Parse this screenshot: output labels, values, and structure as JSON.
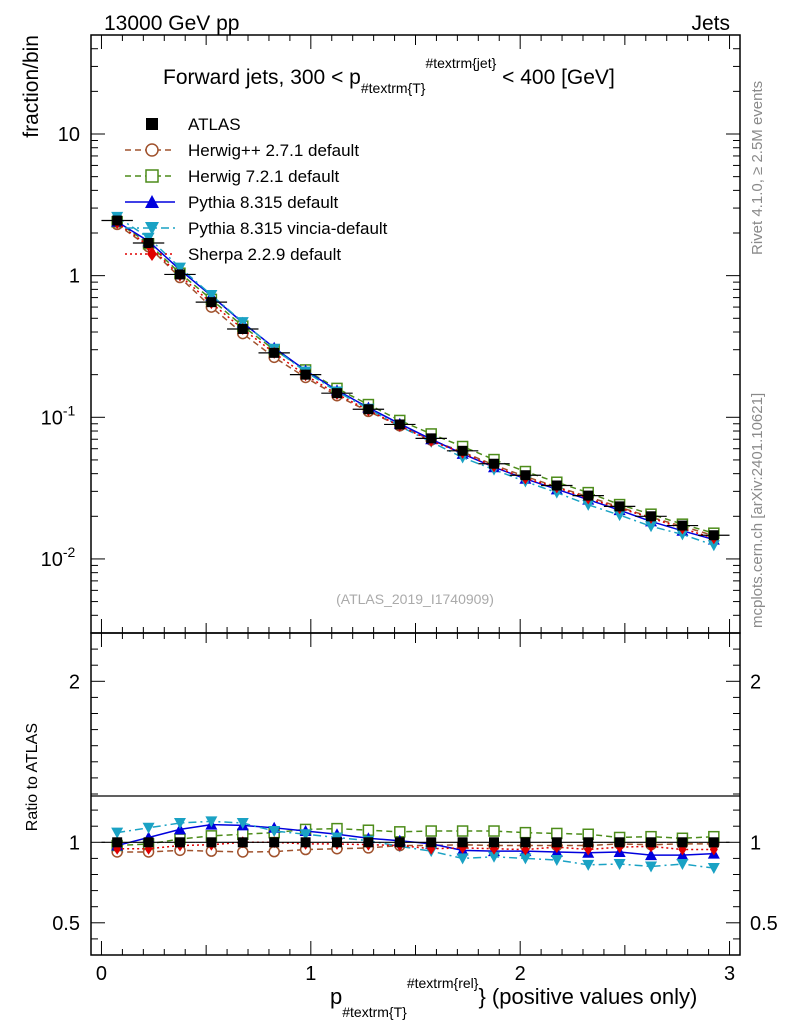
{
  "header": {
    "energy": "13000 GeV pp",
    "category": "Jets"
  },
  "side_labels": {
    "rivet": "Rivet 4.1.0, ≥ 2.5M events",
    "mcplots": "mcplots.cern.ch [arXiv:2401.10621]"
  },
  "watermark": "(ATLAS_2019_I1740909)",
  "chart_data": {
    "type": "line",
    "title": "Forward jets, 300 < p_{#textrm{T}}^{#textrm{jet}} < 400 [GeV]",
    "title_parts": {
      "prefix": "Forward jets, 300 < p",
      "sub": "#textrm{T}",
      "sup": "#textrm{jet}",
      "suffix": " < 400 [GeV]"
    },
    "xlabel_parts": {
      "base": "p",
      "sub": "#textrm{T}",
      "sup": "#textrm{rel}",
      "suffix": "} (positive values only)"
    },
    "ylabel_top": "fraction/bin",
    "ylabel_bottom": "Ratio to ATLAS",
    "xlim": [
      -0.05,
      3.05
    ],
    "ylim_top": [
      0.003,
      50
    ],
    "ylim_bottom": [
      0.3,
      2.3
    ],
    "x_ticks": [
      "0",
      "1",
      "2",
      "3"
    ],
    "y_ticks_top": [
      "10^{-2}",
      "10^{-1}",
      "1",
      "10"
    ],
    "y_ticks_bottom": [
      "0.5",
      "1",
      "2"
    ],
    "legend_position": "top-left",
    "x": [
      0.075,
      0.225,
      0.375,
      0.525,
      0.675,
      0.825,
      0.975,
      1.125,
      1.275,
      1.425,
      1.575,
      1.725,
      1.875,
      2.025,
      2.175,
      2.325,
      2.475,
      2.625,
      2.775,
      2.925
    ],
    "series": [
      {
        "name": "ATLAS",
        "color": "#000000",
        "marker": "square-filled",
        "line": "none",
        "values": [
          2.45,
          1.7,
          1.02,
          0.65,
          0.42,
          0.285,
          0.2,
          0.148,
          0.114,
          0.089,
          0.071,
          0.058,
          0.047,
          0.039,
          0.033,
          0.028,
          0.0235,
          0.02,
          0.0172,
          0.0147
        ],
        "ratio": [
          1,
          1,
          1,
          1,
          1,
          1,
          1,
          1,
          1,
          1,
          1,
          1,
          1,
          1,
          1,
          1,
          1,
          1,
          1,
          1
        ]
      },
      {
        "name": "Herwig++ 2.7.1 default",
        "color": "#a0522d",
        "marker": "circle-open",
        "line": "dashed",
        "values": [
          2.3,
          1.6,
          0.97,
          0.6,
          0.39,
          0.265,
          0.191,
          0.142,
          0.11,
          0.087,
          0.069,
          0.057,
          0.046,
          0.0382,
          0.0323,
          0.0275,
          0.0232,
          0.0197,
          0.017,
          0.0146
        ],
        "ratio": [
          0.94,
          0.94,
          0.95,
          0.945,
          0.94,
          0.942,
          0.955,
          0.96,
          0.965,
          0.98,
          0.98,
          0.985,
          0.98,
          0.98,
          0.98,
          0.98,
          0.99,
          0.985,
          0.99,
          0.99
        ]
      },
      {
        "name": "Herwig 7.2.1 default",
        "color": "#4d8c1a",
        "marker": "square-open",
        "line": "dashed",
        "values": [
          2.4,
          1.68,
          1.04,
          0.68,
          0.44,
          0.3,
          0.216,
          0.16,
          0.123,
          0.095,
          0.0763,
          0.0622,
          0.0503,
          0.0414,
          0.0348,
          0.0294,
          0.0242,
          0.0207,
          0.0176,
          0.0152
        ],
        "ratio": [
          0.98,
          0.99,
          1.02,
          1.04,
          1.05,
          1.06,
          1.08,
          1.085,
          1.075,
          1.065,
          1.07,
          1.07,
          1.07,
          1.06,
          1.055,
          1.05,
          1.03,
          1.035,
          1.025,
          1.035
        ]
      },
      {
        "name": "Pythia 8.315 default",
        "color": "#0000dd",
        "marker": "triangle-up-filled",
        "line": "solid",
        "values": [
          2.4,
          1.75,
          1.1,
          0.72,
          0.465,
          0.31,
          0.214,
          0.155,
          0.117,
          0.09,
          0.07,
          0.0552,
          0.0444,
          0.0368,
          0.031,
          0.0262,
          0.0221,
          0.0184,
          0.0158,
          0.0137
        ],
        "ratio": [
          0.98,
          1.03,
          1.08,
          1.11,
          1.105,
          1.09,
          1.07,
          1.05,
          1.025,
          1.01,
          0.99,
          0.95,
          0.945,
          0.945,
          0.94,
          0.935,
          0.94,
          0.92,
          0.92,
          0.93
        ]
      },
      {
        "name": "Pythia 8.315 vincia-default",
        "color": "#1aa2c4",
        "marker": "triangle-down-filled",
        "line": "dashdot",
        "values": [
          2.6,
          1.85,
          1.14,
          0.73,
          0.47,
          0.305,
          0.21,
          0.152,
          0.115,
          0.0865,
          0.067,
          0.052,
          0.0427,
          0.0352,
          0.0294,
          0.0241,
          0.0204,
          0.017,
          0.0149,
          0.0125
        ],
        "ratio": [
          1.06,
          1.09,
          1.12,
          1.13,
          1.12,
          1.07,
          1.05,
          1.03,
          1.01,
          0.975,
          0.945,
          0.9,
          0.91,
          0.9,
          0.89,
          0.86,
          0.865,
          0.85,
          0.865,
          0.84
        ]
      },
      {
        "name": "Sherpa 2.2.9 default",
        "color": "#e00000",
        "marker": "diamond-filled",
        "line": "dotted",
        "values": [
          2.35,
          1.63,
          1.0,
          0.64,
          0.42,
          0.285,
          0.198,
          0.146,
          0.112,
          0.087,
          0.068,
          0.056,
          0.045,
          0.037,
          0.032,
          0.0267,
          0.0228,
          0.0195,
          0.0164,
          0.014
        ],
        "ratio": [
          0.96,
          0.96,
          0.98,
          0.985,
          1.0,
          1.0,
          0.99,
          0.99,
          0.985,
          0.98,
          0.96,
          0.965,
          0.96,
          0.955,
          0.97,
          0.955,
          0.97,
          0.975,
          0.955,
          0.955
        ]
      }
    ]
  }
}
